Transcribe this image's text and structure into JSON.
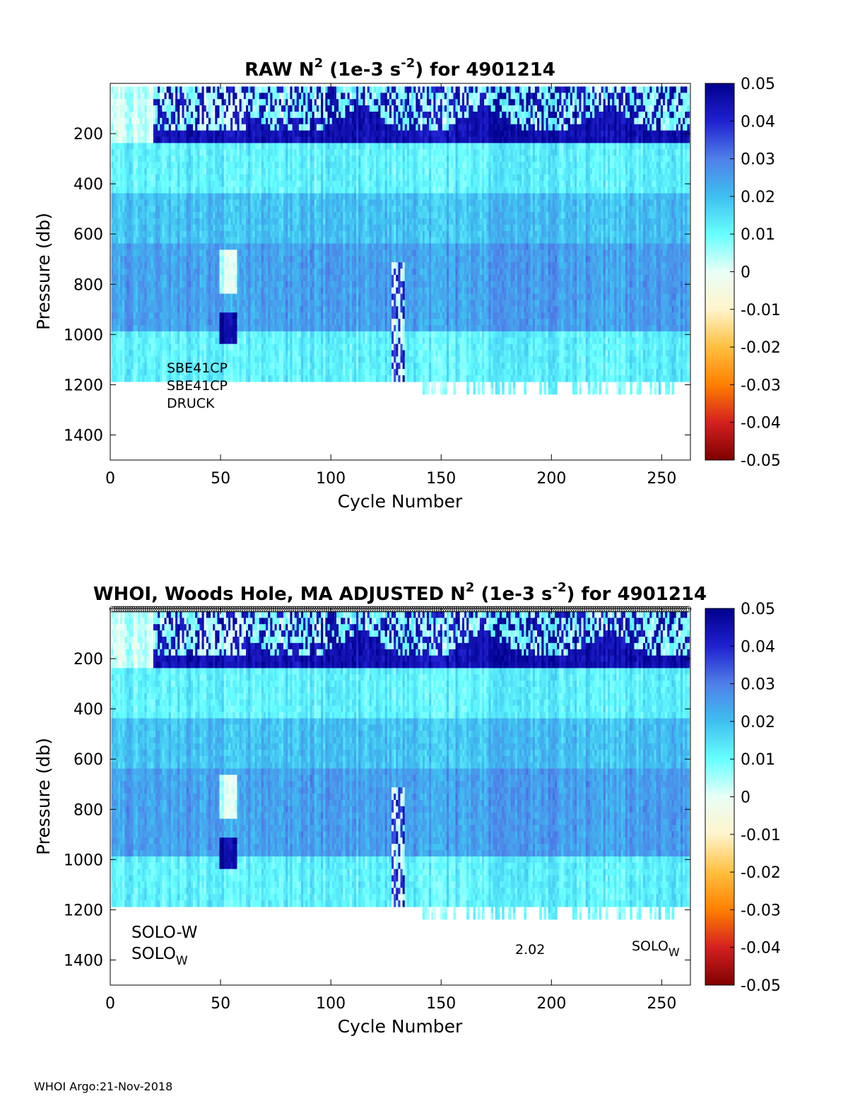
{
  "footer": "WHOI Argo:21-Nov-2018",
  "colormap": {
    "stops": [
      "#7f0000",
      "#d42020",
      "#ff7f00",
      "#ffc040",
      "#fff4cc",
      "#e9fff6",
      "#66ffff",
      "#3fbff0",
      "#4f7fe8",
      "#2020d0",
      "#00008c"
    ],
    "nan_color": "#ffffff"
  },
  "chart_data": [
    {
      "type": "heatmap",
      "title_prefix": "RAW N",
      "title_sup1": "2",
      "title_mid": " (1e-3 s",
      "title_sup2": "-2",
      "title_suffix": ") for 4901214",
      "xlabel": "Cycle Number",
      "ylabel": "Pressure (db)",
      "xlim": [
        0,
        263
      ],
      "ylim": [
        1500,
        0
      ],
      "y_reversed": true,
      "x_ticks": [
        "0",
        "50",
        "100",
        "150",
        "200",
        "250"
      ],
      "y_ticks": [
        "200",
        "400",
        "600",
        "800",
        "1000",
        "1200",
        "1400"
      ],
      "colorbar": {
        "range": [
          -0.05,
          0.05
        ],
        "ticks": [
          "0.05",
          "0.04",
          "0.03",
          "0.02",
          "0.01",
          "0",
          "-0.01",
          "-0.02",
          "-0.03",
          "-0.04",
          "-0.05"
        ]
      },
      "annotations": {
        "line1": "SBE41CP",
        "line2": "SBE41CP",
        "line3": "DRUCK"
      },
      "description_bands": [
        {
          "pressure_range": [
            0,
            250
          ],
          "typical_value": 0.045
        },
        {
          "pressure_range": [
            250,
            450
          ],
          "typical_value": 0.012
        },
        {
          "pressure_range": [
            450,
            650
          ],
          "typical_value": 0.02
        },
        {
          "pressure_range": [
            650,
            1000
          ],
          "typical_value": 0.025
        },
        {
          "pressure_range": [
            1000,
            1200
          ],
          "typical_value": 0.012
        }
      ]
    },
    {
      "type": "heatmap",
      "title_prefix": "WHOI, Woods Hole, MA  ADJUSTED N",
      "title_sup1": "2",
      "title_mid": " (1e-3 s",
      "title_sup2": "-2",
      "title_suffix": ") for 4901214",
      "xlabel": "Cycle Number",
      "ylabel": "Pressure (db)",
      "xlim": [
        0,
        263
      ],
      "ylim": [
        1500,
        0
      ],
      "y_reversed": true,
      "x_ticks": [
        "0",
        "50",
        "100",
        "150",
        "200",
        "250"
      ],
      "y_ticks": [
        "200",
        "400",
        "600",
        "800",
        "1000",
        "1200",
        "1400"
      ],
      "colorbar": {
        "range": [
          -0.05,
          0.05
        ],
        "ticks": [
          "0.05",
          "0.04",
          "0.03",
          "0.02",
          "0.01",
          "0",
          "-0.01",
          "-0.02",
          "-0.03",
          "-0.04",
          "-0.05"
        ]
      },
      "annotations": {
        "left1": "SOLO-W",
        "left2_base": "SOLO",
        "left2_sub": "W",
        "mid": "2.02",
        "right_base": "SOLO",
        "right_sub": "W"
      }
    }
  ]
}
